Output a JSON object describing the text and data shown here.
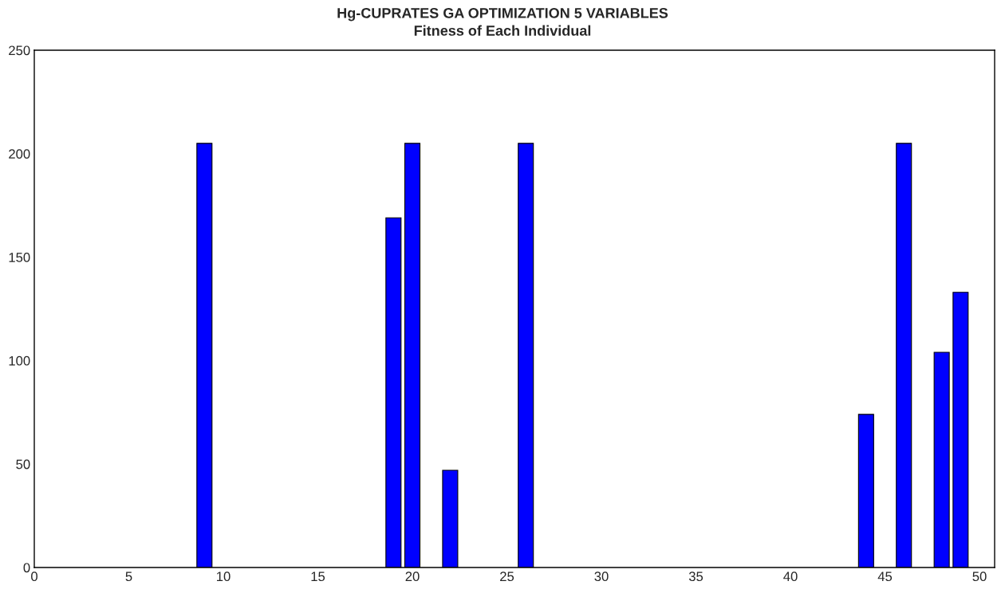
{
  "chart_data": {
    "type": "bar",
    "title": "Hg-CUPRATES GA OPTIMIZATION 5 VARIABLES",
    "subtitle": "Fitness of Each Individual",
    "x": [
      9,
      19,
      20,
      22,
      26,
      44,
      46,
      48,
      49
    ],
    "values": [
      205,
      169,
      205,
      47,
      205,
      74,
      205,
      104,
      133
    ],
    "color": "#0000ff",
    "xlim": [
      0,
      50.8
    ],
    "xticks": [
      0,
      5,
      10,
      15,
      20,
      25,
      30,
      35,
      40,
      45,
      50
    ],
    "ylim": [
      0,
      250
    ],
    "yticks": [
      0,
      50,
      100,
      150,
      200,
      250
    ],
    "grid": false
  }
}
